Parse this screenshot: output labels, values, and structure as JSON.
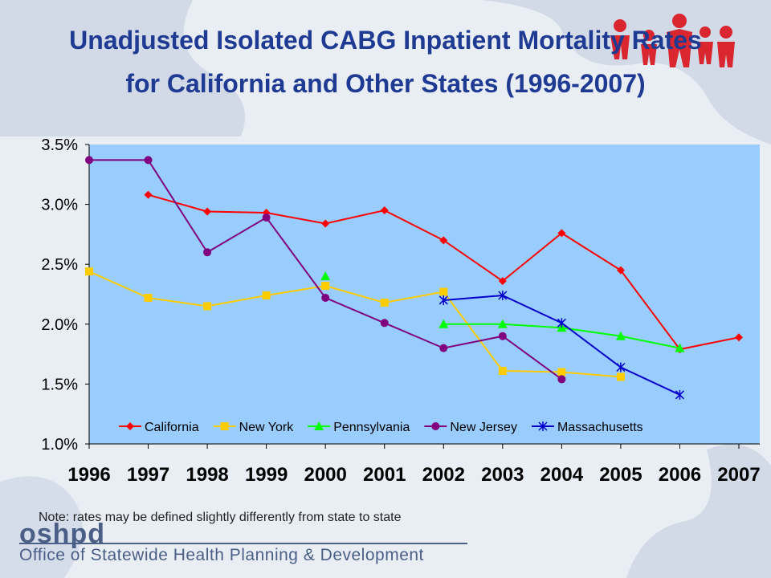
{
  "title_line1": "Unadjusted Isolated CABG Inpatient Mortality Rates",
  "title_line2": "for California and Other States (1996-2007)",
  "note": "Note: rates may be defined slightly differently from state to state",
  "logo": {
    "mark": "oshpd",
    "org_name": "Office of Statewide Health Planning & Development"
  },
  "colors": {
    "title": "#1f3a93",
    "plot_bg": "#99ccff",
    "logo": "#4b5f86"
  },
  "chart_data": {
    "type": "line",
    "title": "Unadjusted Isolated CABG Inpatient Mortality Rates for California and Other States (1996-2007)",
    "x": [
      "1996",
      "1997",
      "1998",
      "1999",
      "2000",
      "2001",
      "2002",
      "2003",
      "2004",
      "2005",
      "2006",
      "2007"
    ],
    "ylim": [
      1.0,
      3.5
    ],
    "yticks": [
      "1.0%",
      "1.5%",
      "2.0%",
      "2.5%",
      "3.0%",
      "3.5%"
    ],
    "legend_position": "bottom-inside",
    "grid": false,
    "series": [
      {
        "name": "California",
        "color": "#ff0000",
        "marker": "diamond",
        "values": [
          null,
          3.08,
          2.94,
          2.93,
          2.84,
          2.95,
          2.7,
          2.36,
          2.76,
          2.45,
          1.79,
          1.89
        ]
      },
      {
        "name": "New York",
        "color": "#ffcc00",
        "marker": "square",
        "values": [
          2.44,
          2.22,
          2.15,
          2.24,
          2.32,
          2.18,
          2.27,
          1.61,
          1.6,
          1.56,
          null,
          null
        ]
      },
      {
        "name": "Pennsylvania",
        "color": "#00ff00",
        "marker": "triangle",
        "values": [
          null,
          null,
          null,
          null,
          2.4,
          null,
          2.0,
          2.0,
          1.97,
          1.9,
          1.8,
          null
        ]
      },
      {
        "name": "New Jersey",
        "color": "#800080",
        "marker": "circle",
        "values": [
          3.37,
          3.37,
          2.6,
          2.89,
          2.22,
          2.01,
          1.8,
          1.9,
          1.54,
          null,
          null,
          null
        ]
      },
      {
        "name": "Massachusetts",
        "color": "#0000cc",
        "marker": "star",
        "values": [
          null,
          null,
          null,
          null,
          null,
          null,
          2.2,
          2.24,
          2.01,
          1.64,
          1.41,
          null
        ]
      }
    ]
  }
}
